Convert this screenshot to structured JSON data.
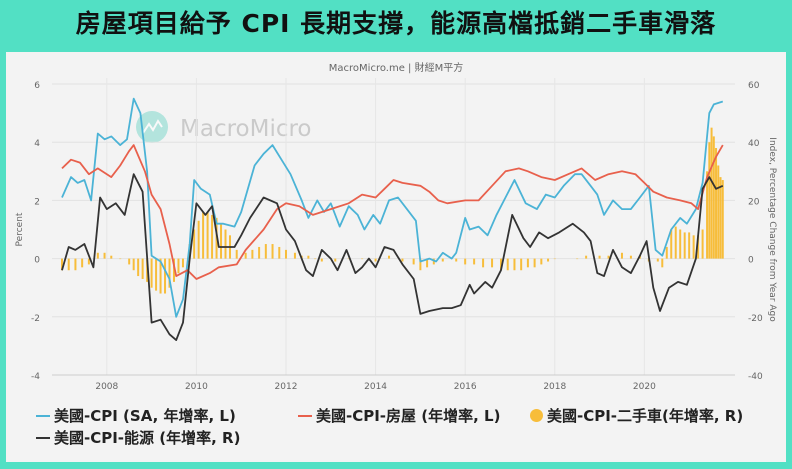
{
  "title": "房屋項目給予 CPI 長期支撐，能源高檔抵銷二手車滑落",
  "source": "MacroMicro.me | 財經M平方",
  "watermark": "MacroMicro",
  "chart_data": {
    "type": "line",
    "xlim": [
      2007,
      2021.8
    ],
    "x_ticks": [
      "2008",
      "2010",
      "2012",
      "2014",
      "2016",
      "2018",
      "2020"
    ],
    "left_axis": {
      "label": "Percent",
      "ylim": [
        -4,
        6
      ],
      "ticks": [
        "-4",
        "-2",
        "0",
        "2",
        "4",
        "6"
      ]
    },
    "right_axis": {
      "label": "Index, Percentage Change from Year Ago",
      "ylim": [
        -40,
        60
      ],
      "ticks": [
        "-40",
        "-20",
        "0",
        "20",
        "40",
        "60"
      ]
    },
    "grid": true,
    "legend_position": "bottom",
    "series": [
      {
        "name": "美國-CPI (SA, 年增率, L)",
        "axis": "left",
        "kind": "line",
        "color": "#4bb3d6",
        "x": [
          2007.0,
          2007.2,
          2007.35,
          2007.5,
          2007.65,
          2007.8,
          2007.95,
          2008.1,
          2008.3,
          2008.45,
          2008.6,
          2008.75,
          2008.9,
          2009.0,
          2009.2,
          2009.4,
          2009.55,
          2009.7,
          2009.85,
          2009.95,
          2010.1,
          2010.3,
          2010.45,
          2010.6,
          2010.85,
          2011.0,
          2011.3,
          2011.5,
          2011.7,
          2011.9,
          2012.1,
          2012.35,
          2012.5,
          2012.7,
          2012.85,
          2013.0,
          2013.2,
          2013.4,
          2013.6,
          2013.75,
          2013.95,
          2014.1,
          2014.3,
          2014.5,
          2014.7,
          2014.9,
          2015.0,
          2015.2,
          2015.35,
          2015.5,
          2015.7,
          2015.8,
          2016.0,
          2016.1,
          2016.3,
          2016.5,
          2016.7,
          2016.9,
          2017.1,
          2017.35,
          2017.6,
          2017.8,
          2018.0,
          2018.2,
          2018.45,
          2018.6,
          2018.8,
          2018.95,
          2019.1,
          2019.3,
          2019.5,
          2019.7,
          2019.9,
          2020.1,
          2020.25,
          2020.4,
          2020.6,
          2020.8,
          2020.95,
          2021.15,
          2021.3,
          2021.45,
          2021.55,
          2021.75
        ],
        "y": [
          2.1,
          2.8,
          2.6,
          2.7,
          2.0,
          4.3,
          4.1,
          4.2,
          3.9,
          4.1,
          5.5,
          5.0,
          3.0,
          0.1,
          -0.1,
          -0.7,
          -2.0,
          -1.4,
          0.5,
          2.7,
          2.4,
          2.2,
          1.2,
          1.2,
          1.1,
          1.6,
          3.2,
          3.6,
          3.9,
          3.4,
          2.9,
          2.0,
          1.4,
          2.0,
          1.6,
          1.9,
          1.1,
          1.8,
          1.5,
          1.0,
          1.5,
          1.2,
          2.0,
          2.1,
          1.7,
          1.3,
          -0.1,
          0.0,
          -0.1,
          0.2,
          0.0,
          0.2,
          1.4,
          1.0,
          1.1,
          0.8,
          1.5,
          2.1,
          2.7,
          1.9,
          1.7,
          2.2,
          2.1,
          2.5,
          2.9,
          2.9,
          2.5,
          2.2,
          1.5,
          2.0,
          1.7,
          1.7,
          2.1,
          2.5,
          0.3,
          0.1,
          1.0,
          1.4,
          1.2,
          1.7,
          2.6,
          5.0,
          5.3,
          5.4
        ]
      },
      {
        "name": "美國-CPI-房屋 (年增率, L)",
        "axis": "left",
        "kind": "line",
        "color": "#e8604c",
        "x": [
          2007.0,
          2007.2,
          2007.4,
          2007.6,
          2007.8,
          2008.1,
          2008.3,
          2008.5,
          2008.6,
          2008.85,
          2009.0,
          2009.2,
          2009.4,
          2009.55,
          2009.8,
          2010.0,
          2010.3,
          2010.5,
          2010.9,
          2011.1,
          2011.5,
          2011.8,
          2012.0,
          2012.3,
          2012.6,
          2013.0,
          2013.4,
          2013.7,
          2014.0,
          2014.2,
          2014.4,
          2014.6,
          2015.0,
          2015.2,
          2015.4,
          2015.6,
          2016.0,
          2016.3,
          2016.6,
          2016.9,
          2017.2,
          2017.4,
          2017.7,
          2018.0,
          2018.3,
          2018.6,
          2018.9,
          2019.2,
          2019.5,
          2019.8,
          2020.0,
          2020.2,
          2020.5,
          2020.8,
          2021.05,
          2021.2,
          2021.4,
          2021.6,
          2021.75
        ],
        "y": [
          3.1,
          3.4,
          3.3,
          2.9,
          3.1,
          2.8,
          3.2,
          3.7,
          3.9,
          3.0,
          2.2,
          1.7,
          0.5,
          -0.6,
          -0.4,
          -0.7,
          -0.5,
          -0.3,
          -0.2,
          0.3,
          1.0,
          1.7,
          1.9,
          1.8,
          1.5,
          1.7,
          1.9,
          2.2,
          2.1,
          2.4,
          2.7,
          2.6,
          2.5,
          2.3,
          2.0,
          1.9,
          2.0,
          2.0,
          2.5,
          3.0,
          3.1,
          3.0,
          2.8,
          2.7,
          2.9,
          3.1,
          2.7,
          2.9,
          3.0,
          2.9,
          2.6,
          2.3,
          2.1,
          2.0,
          1.9,
          1.7,
          2.8,
          3.5,
          3.9
        ]
      },
      {
        "name": "美國-CPI-二手車(年增率, R)",
        "axis": "right",
        "kind": "bar",
        "color": "#f7bd3a",
        "x": [
          2007.0,
          2007.15,
          2007.3,
          2007.45,
          2007.6,
          2007.8,
          2007.95,
          2008.1,
          2008.3,
          2008.5,
          2008.6,
          2008.7,
          2008.8,
          2008.9,
          2009.0,
          2009.1,
          2009.2,
          2009.3,
          2009.4,
          2009.5,
          2009.6,
          2009.7,
          2009.85,
          2009.95,
          2010.05,
          2010.15,
          2010.25,
          2010.35,
          2010.45,
          2010.55,
          2010.65,
          2010.75,
          2010.9,
          2011.1,
          2011.25,
          2011.4,
          2011.55,
          2011.7,
          2011.85,
          2012.0,
          2012.2,
          2012.35,
          2012.5,
          2012.65,
          2012.8,
          2013.1,
          2013.4,
          2013.7,
          2014.0,
          2014.3,
          2014.6,
          2014.85,
          2015.0,
          2015.15,
          2015.3,
          2015.5,
          2015.8,
          2016.0,
          2016.2,
          2016.4,
          2016.6,
          2016.8,
          2016.95,
          2017.1,
          2017.25,
          2017.4,
          2017.55,
          2017.7,
          2017.85,
          2018.0,
          2018.5,
          2018.7,
          2019.0,
          2019.2,
          2019.5,
          2019.7,
          2019.9,
          2020.1,
          2020.3,
          2020.4,
          2020.5,
          2020.6,
          2020.7,
          2020.8,
          2020.9,
          2021.0,
          2021.1,
          2021.2,
          2021.3,
          2021.4,
          2021.45,
          2021.5,
          2021.55,
          2021.6,
          2021.65,
          2021.7,
          2021.75
        ],
        "y": [
          -4,
          -4,
          -4,
          -3,
          -2,
          2,
          2,
          1,
          0,
          -2,
          -4,
          -6,
          -7,
          -8,
          -10,
          -11,
          -12,
          -12,
          -10,
          -8,
          -5,
          -3,
          5,
          10,
          13,
          16,
          16,
          15,
          14,
          12,
          10,
          8,
          3,
          2,
          3,
          4,
          5,
          5,
          4,
          3,
          2,
          1,
          1,
          0,
          -1,
          -1,
          0,
          0,
          -1,
          1,
          -1,
          -2,
          -4,
          -3,
          -2,
          -1,
          -1,
          -2,
          -2,
          -3,
          -3,
          -4,
          -4,
          -4,
          -4,
          -3,
          -3,
          -2,
          -1,
          0,
          0,
          1,
          1,
          1,
          2,
          1,
          1,
          -1,
          -1,
          -3,
          4,
          10,
          11,
          10,
          9,
          9,
          8,
          8,
          10,
          30,
          40,
          45,
          42,
          38,
          32,
          28,
          27
        ]
      },
      {
        "name": "美國-CPI-能源 (年增率, R)",
        "axis": "right",
        "kind": "line",
        "color": "#333333",
        "x": [
          2007.0,
          2007.15,
          2007.3,
          2007.5,
          2007.7,
          2007.85,
          2008.0,
          2008.2,
          2008.4,
          2008.6,
          2008.8,
          2009.0,
          2009.2,
          2009.4,
          2009.55,
          2009.7,
          2009.85,
          2010.0,
          2010.2,
          2010.35,
          2010.5,
          2010.7,
          2010.85,
          2011.0,
          2011.2,
          2011.5,
          2011.8,
          2012.0,
          2012.2,
          2012.45,
          2012.6,
          2012.8,
          2013.0,
          2013.15,
          2013.35,
          2013.55,
          2013.7,
          2013.85,
          2014.0,
          2014.2,
          2014.4,
          2014.6,
          2014.85,
          2015.0,
          2015.2,
          2015.5,
          2015.7,
          2015.9,
          2016.1,
          2016.2,
          2016.45,
          2016.6,
          2016.8,
          2017.05,
          2017.3,
          2017.45,
          2017.65,
          2017.85,
          2018.1,
          2018.4,
          2018.65,
          2018.8,
          2018.95,
          2019.1,
          2019.3,
          2019.5,
          2019.7,
          2019.9,
          2020.05,
          2020.2,
          2020.35,
          2020.55,
          2020.75,
          2020.95,
          2021.15,
          2021.3,
          2021.45,
          2021.6,
          2021.75
        ],
        "y": [
          -4,
          4,
          3,
          5,
          -3,
          21,
          17,
          19,
          15,
          29,
          23,
          -22,
          -21,
          -26,
          -28,
          -22,
          0,
          19,
          15,
          18,
          4,
          4,
          4,
          8,
          14,
          21,
          19,
          10,
          6,
          -4,
          -6,
          3,
          0,
          -4,
          3,
          -5,
          -3,
          0,
          -3,
          4,
          3,
          -2,
          -7,
          -19,
          -18,
          -17,
          -17,
          -16,
          -9,
          -12,
          -8,
          -10,
          -4,
          15,
          7,
          4,
          9,
          7,
          9,
          12,
          9,
          6,
          -5,
          -6,
          3,
          -3,
          -5,
          1,
          6,
          -10,
          -18,
          -10,
          -8,
          -9,
          0,
          24,
          28,
          24,
          25
        ]
      }
    ]
  }
}
